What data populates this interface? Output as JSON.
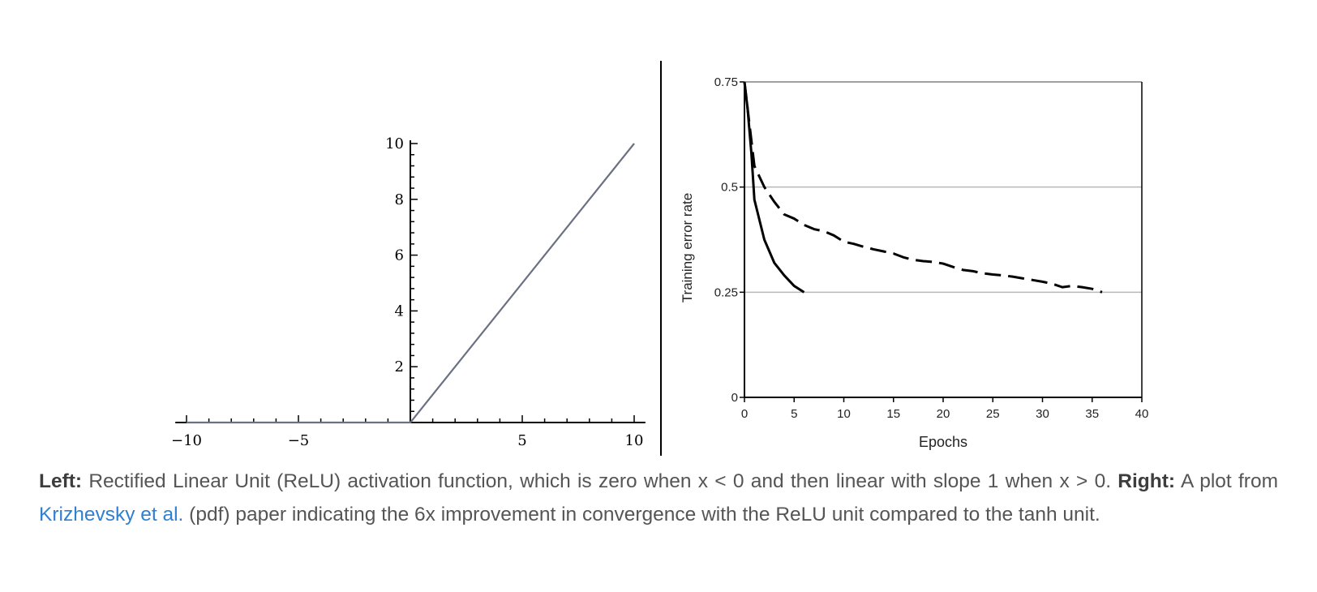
{
  "chart_data": [
    {
      "type": "line",
      "title": "",
      "xlabel": "",
      "ylabel": "",
      "xlim": [
        -10.5,
        10.5
      ],
      "ylim": [
        0,
        10
      ],
      "x_ticks": [
        -10,
        -5,
        5,
        10
      ],
      "x_tick_labels": [
        "−10",
        "−5",
        "5",
        "10"
      ],
      "y_ticks": [
        2,
        4,
        6,
        8,
        10
      ],
      "y_tick_labels": [
        "2",
        "4",
        "6",
        "8",
        "10"
      ],
      "series": [
        {
          "x": [
            -10,
            0,
            10
          ],
          "y": [
            0,
            0,
            10
          ],
          "color": "#6b7182"
        }
      ],
      "grid": false
    },
    {
      "type": "line",
      "title": "",
      "xlabel": "Epochs",
      "ylabel": "Training error rate",
      "xlim": [
        0,
        40
      ],
      "ylim": [
        0,
        0.75
      ],
      "x_ticks": [
        0,
        5,
        10,
        15,
        20,
        25,
        30,
        35,
        40
      ],
      "x_tick_labels": [
        "0",
        "5",
        "10",
        "15",
        "20",
        "25",
        "30",
        "35",
        "40"
      ],
      "y_ticks": [
        0,
        0.25,
        0.5,
        0.75
      ],
      "y_tick_labels": [
        "0",
        "0.25",
        "0.5",
        "0.75"
      ],
      "grid": true,
      "series": [
        {
          "style": "solid",
          "x": [
            0,
            0.3,
            0.7,
            1,
            2,
            3,
            4,
            5,
            6
          ],
          "y": [
            0.75,
            0.69,
            0.58,
            0.47,
            0.375,
            0.32,
            0.29,
            0.265,
            0.25
          ]
        },
        {
          "style": "dashed",
          "x": [
            0,
            0.5,
            1,
            2,
            3,
            4,
            5,
            6,
            7,
            8,
            9,
            10,
            11,
            12,
            13,
            14,
            15,
            16,
            17,
            18,
            19,
            20,
            21,
            22,
            23,
            24,
            25,
            26,
            27,
            28,
            29,
            30,
            31,
            32,
            33,
            34,
            35,
            36
          ],
          "y": [
            0.75,
            0.65,
            0.55,
            0.5,
            0.465,
            0.435,
            0.425,
            0.41,
            0.4,
            0.395,
            0.385,
            0.37,
            0.365,
            0.358,
            0.352,
            0.347,
            0.342,
            0.333,
            0.327,
            0.324,
            0.322,
            0.318,
            0.31,
            0.303,
            0.3,
            0.295,
            0.292,
            0.29,
            0.287,
            0.283,
            0.279,
            0.275,
            0.27,
            0.262,
            0.265,
            0.262,
            0.258,
            0.25
          ]
        }
      ]
    }
  ],
  "caption": {
    "left_label": "Left:",
    "left_text": " Rectified Linear Unit (ReLU) activation function, which is zero when x < 0 and then linear with slope 1 when x > 0. ",
    "right_label": "Right:",
    "right_text_1": " A plot from ",
    "link_text": "Krizhevsky et al.",
    "right_text_2": " (pdf) paper indicating the 6x improvement in convergence with the ReLU unit compared to the tanh unit."
  }
}
